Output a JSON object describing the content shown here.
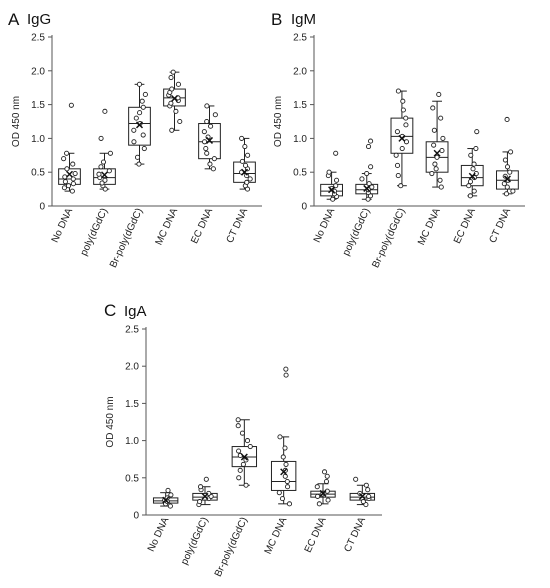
{
  "chart_data": [
    {
      "type": "box",
      "panel": "A",
      "title": "IgG",
      "ylabel": "OD 450 nm",
      "ylim": [
        0,
        2.5
      ],
      "yticks": [
        "0",
        "0.5",
        "1.0",
        "1.5",
        "2.0",
        "2.5"
      ],
      "categories": [
        "No DNA",
        "poly(dGdC)",
        "Br-poly(dGdC)",
        "MC DNA",
        "EC DNA",
        "CT DNA"
      ],
      "boxes": [
        {
          "whisker_low": 0.22,
          "q1": 0.32,
          "median": 0.4,
          "q3": 0.55,
          "whisker_high": 0.78,
          "mean": 0.47,
          "points": [
            0.22,
            0.27,
            0.3,
            0.33,
            0.36,
            0.4,
            0.43,
            0.48,
            0.55,
            0.62,
            0.7,
            0.78,
            1.49
          ]
        },
        {
          "whisker_low": 0.25,
          "q1": 0.32,
          "median": 0.42,
          "q3": 0.55,
          "whisker_high": 0.78,
          "mean": 0.46,
          "points": [
            0.25,
            0.3,
            0.34,
            0.38,
            0.42,
            0.47,
            0.52,
            0.58,
            0.65,
            0.78,
            1.0,
            1.4
          ]
        },
        {
          "whisker_low": 0.62,
          "q1": 0.9,
          "median": 1.22,
          "q3": 1.46,
          "whisker_high": 1.8,
          "mean": 1.2,
          "points": [
            0.62,
            0.72,
            0.85,
            0.95,
            1.05,
            1.12,
            1.22,
            1.3,
            1.38,
            1.46,
            1.55,
            1.65,
            1.8
          ]
        },
        {
          "whisker_low": 1.12,
          "q1": 1.48,
          "median": 1.6,
          "q3": 1.73,
          "whisker_high": 1.98,
          "mean": 1.59,
          "points": [
            1.12,
            1.25,
            1.4,
            1.48,
            1.52,
            1.56,
            1.6,
            1.64,
            1.68,
            1.73,
            1.8,
            1.9,
            1.98
          ]
        },
        {
          "whisker_low": 0.55,
          "q1": 0.7,
          "median": 0.95,
          "q3": 1.22,
          "whisker_high": 1.48,
          "mean": 0.97,
          "points": [
            0.55,
            0.62,
            0.7,
            0.78,
            0.85,
            0.95,
            1.02,
            1.1,
            1.18,
            1.25,
            1.35,
            1.48
          ]
        },
        {
          "whisker_low": 0.25,
          "q1": 0.35,
          "median": 0.48,
          "q3": 0.65,
          "whisker_high": 1.0,
          "mean": 0.5,
          "points": [
            0.25,
            0.3,
            0.35,
            0.4,
            0.45,
            0.5,
            0.55,
            0.6,
            0.66,
            0.75,
            0.88,
            1.0
          ]
        }
      ]
    },
    {
      "type": "box",
      "panel": "B",
      "title": "IgM",
      "ylabel": "OD 450 nm",
      "ylim": [
        0,
        2.5
      ],
      "yticks": [
        "0",
        "0.5",
        "1.0",
        "1.5",
        "2.0",
        "2.5"
      ],
      "categories": [
        "No DNA",
        "poly(dGdC)",
        "Br-poly(dGdC)",
        "MC DNA",
        "EC DNA",
        "CT DNA"
      ],
      "boxes": [
        {
          "whisker_low": 0.1,
          "q1": 0.15,
          "median": 0.22,
          "q3": 0.32,
          "whisker_high": 0.5,
          "mean": 0.24,
          "points": [
            0.1,
            0.14,
            0.18,
            0.22,
            0.26,
            0.3,
            0.38,
            0.45,
            0.5,
            0.78
          ]
        },
        {
          "whisker_low": 0.1,
          "q1": 0.18,
          "median": 0.24,
          "q3": 0.32,
          "whisker_high": 0.48,
          "mean": 0.26,
          "points": [
            0.1,
            0.15,
            0.2,
            0.24,
            0.28,
            0.33,
            0.4,
            0.48,
            0.58,
            0.88,
            0.96
          ]
        },
        {
          "whisker_low": 0.3,
          "q1": 0.78,
          "median": 1.03,
          "q3": 1.3,
          "whisker_high": 1.7,
          "mean": 1.0,
          "points": [
            0.3,
            0.45,
            0.6,
            0.75,
            0.85,
            0.95,
            1.03,
            1.1,
            1.2,
            1.3,
            1.42,
            1.55,
            1.7
          ]
        },
        {
          "whisker_low": 0.28,
          "q1": 0.5,
          "median": 0.72,
          "q3": 0.95,
          "whisker_high": 1.55,
          "mean": 0.78,
          "points": [
            0.28,
            0.38,
            0.48,
            0.55,
            0.62,
            0.72,
            0.82,
            0.9,
            1.0,
            1.12,
            1.3,
            1.45,
            1.65
          ]
        },
        {
          "whisker_low": 0.15,
          "q1": 0.3,
          "median": 0.42,
          "q3": 0.6,
          "whisker_high": 0.85,
          "mean": 0.44,
          "points": [
            0.15,
            0.22,
            0.3,
            0.36,
            0.42,
            0.48,
            0.55,
            0.62,
            0.75,
            0.85,
            1.1
          ]
        },
        {
          "whisker_low": 0.18,
          "q1": 0.25,
          "median": 0.38,
          "q3": 0.52,
          "whisker_high": 0.8,
          "mean": 0.4,
          "points": [
            0.18,
            0.22,
            0.28,
            0.33,
            0.38,
            0.44,
            0.5,
            0.58,
            0.68,
            0.8,
            1.28
          ]
        }
      ]
    },
    {
      "type": "box",
      "panel": "C",
      "title": "IgA",
      "ylabel": "OD 450 nm",
      "ylim": [
        0,
        2.5
      ],
      "yticks": [
        "0",
        "0.5",
        "1.0",
        "1.5",
        "2.0",
        "2.5"
      ],
      "categories": [
        "No DNA",
        "poly(dGdC)",
        "Br-poly(dGdC)",
        "MC DNA",
        "EC DNA",
        "CT DNA"
      ],
      "boxes": [
        {
          "whisker_low": 0.12,
          "q1": 0.16,
          "median": 0.19,
          "q3": 0.23,
          "whisker_high": 0.3,
          "mean": 0.2,
          "points": [
            0.12,
            0.15,
            0.18,
            0.2,
            0.23,
            0.27,
            0.33
          ]
        },
        {
          "whisker_low": 0.14,
          "q1": 0.2,
          "median": 0.24,
          "q3": 0.29,
          "whisker_high": 0.38,
          "mean": 0.25,
          "points": [
            0.14,
            0.18,
            0.22,
            0.25,
            0.29,
            0.34,
            0.38,
            0.48
          ]
        },
        {
          "whisker_low": 0.4,
          "q1": 0.65,
          "median": 0.78,
          "q3": 0.92,
          "whisker_high": 1.28,
          "mean": 0.78,
          "points": [
            0.4,
            0.5,
            0.6,
            0.68,
            0.74,
            0.8,
            0.86,
            0.92,
            1.0,
            1.1,
            1.2,
            1.28
          ]
        },
        {
          "whisker_low": 0.15,
          "q1": 0.33,
          "median": 0.45,
          "q3": 0.72,
          "whisker_high": 1.05,
          "mean": 0.58,
          "points": [
            0.15,
            0.22,
            0.3,
            0.38,
            0.45,
            0.52,
            0.6,
            0.68,
            0.78,
            0.9,
            1.05,
            1.88,
            1.96
          ]
        },
        {
          "whisker_low": 0.15,
          "q1": 0.24,
          "median": 0.28,
          "q3": 0.32,
          "whisker_high": 0.42,
          "mean": 0.29,
          "points": [
            0.15,
            0.2,
            0.25,
            0.28,
            0.32,
            0.38,
            0.45,
            0.52,
            0.58
          ]
        },
        {
          "whisker_low": 0.14,
          "q1": 0.2,
          "median": 0.24,
          "q3": 0.29,
          "whisker_high": 0.4,
          "mean": 0.25,
          "points": [
            0.14,
            0.18,
            0.22,
            0.25,
            0.29,
            0.34,
            0.4,
            0.48
          ]
        }
      ]
    }
  ]
}
